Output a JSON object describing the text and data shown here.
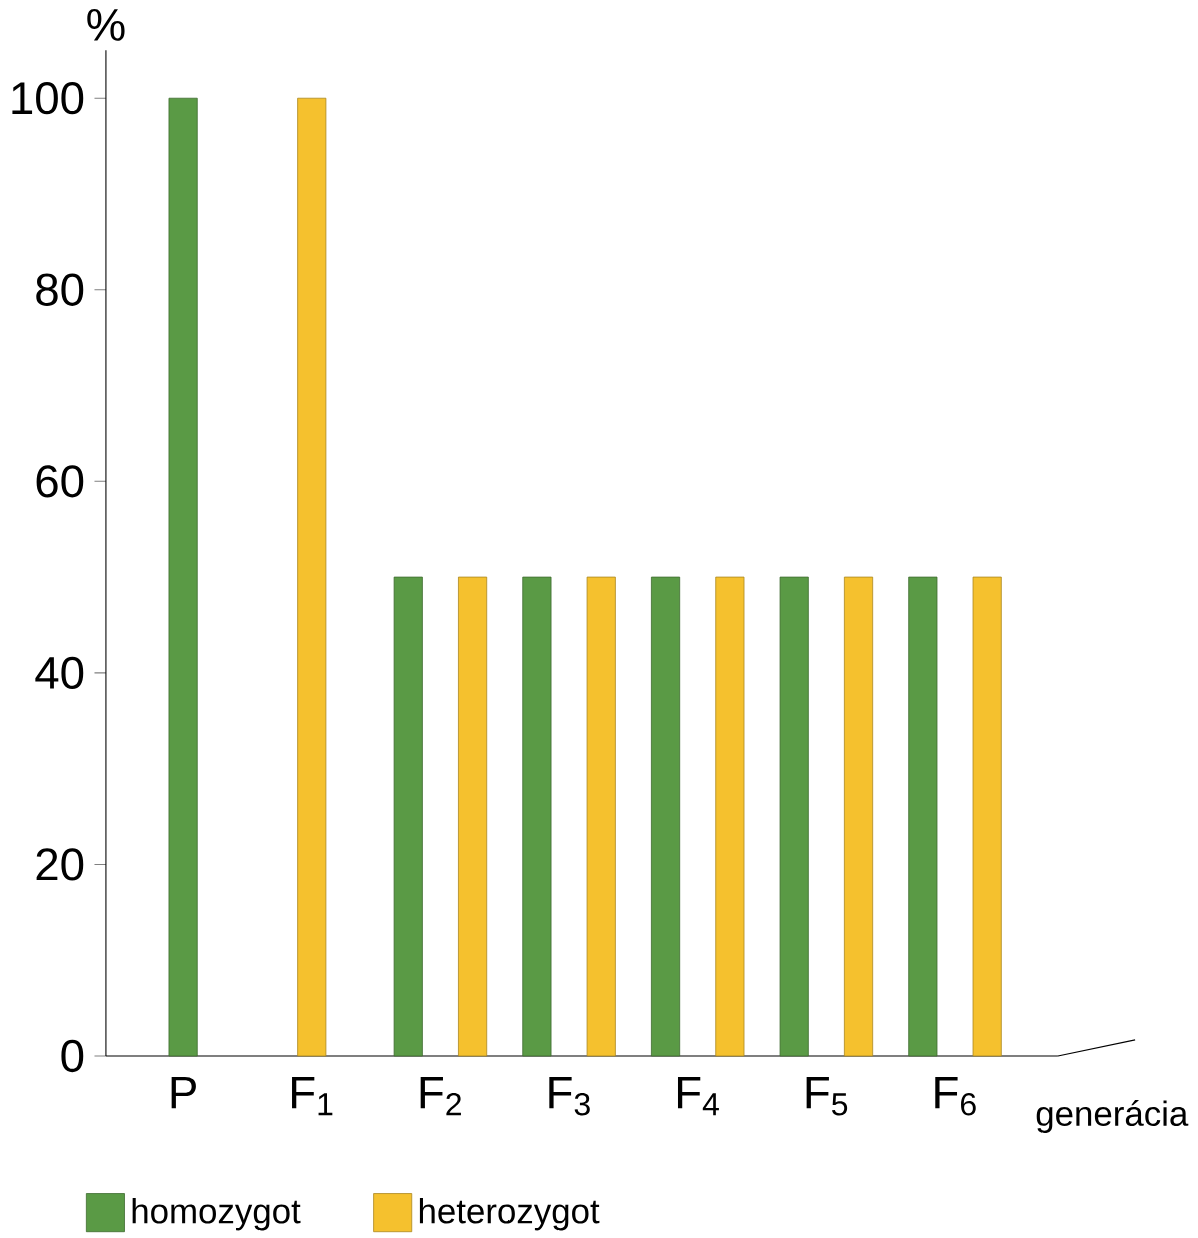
{
  "chart_data": {
    "type": "bar",
    "xlabel": "generácia",
    "ylabel": "%",
    "categories": [
      "P",
      "F$_{1}$",
      "F$_{2}$",
      "F$_{3}$",
      "F$_{4}$",
      "F$_{5}$",
      "F$_{6}$"
    ],
    "series": [
      {
        "name": "homozygot",
        "color": "#5a9a45",
        "values": [
          100,
          null,
          50,
          50,
          50,
          50,
          50
        ]
      },
      {
        "name": "heterozygot",
        "color": "#f5c12e",
        "values": [
          null,
          100,
          50,
          50,
          50,
          50,
          50
        ]
      }
    ],
    "ylim": [
      0,
      105
    ],
    "yticks": [
      0,
      20,
      40,
      60,
      80,
      100
    ],
    "grid": false,
    "legend": "bottom left"
  }
}
